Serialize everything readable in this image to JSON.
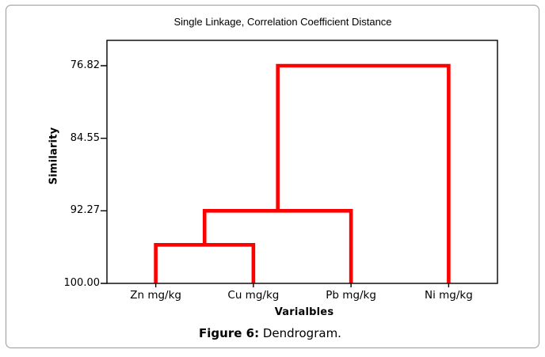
{
  "figure": {
    "caption_label": "Figure 6:",
    "caption_text": " Dendrogram."
  },
  "chart_data": {
    "type": "dendrogram",
    "title": "Single Linkage, Correlation Coefficient Distance",
    "xlabel": "Varialbles",
    "ylabel": "Similarity",
    "y_axis": {
      "ticks": [
        "76.82",
        "84.55",
        "92.27",
        "100.00"
      ],
      "top_value": 76.82,
      "bottom_value": 100.0,
      "orientation": "similarity 100 at bottom axis, decreasing upward"
    },
    "leaves": [
      "Zn mg/kg",
      "Cu mg/kg",
      "Pb mg/kg",
      "Ni mg/kg"
    ],
    "merges": [
      {
        "children": [
          {
            "leaf": 0
          },
          {
            "leaf": 1
          }
        ],
        "similarity": 95.9,
        "note": "Zn + Cu"
      },
      {
        "children": [
          {
            "node": 0
          },
          {
            "leaf": 2
          }
        ],
        "similarity": 92.27,
        "note": "(Zn,Cu) + Pb"
      },
      {
        "children": [
          {
            "node": 1
          },
          {
            "leaf": 3
          }
        ],
        "similarity": 76.82,
        "note": "(Zn,Cu,Pb) + Ni"
      }
    ],
    "line_color": "#fe0000",
    "axis_color": "#000000",
    "frame_border_color": "#9a9a9a"
  }
}
